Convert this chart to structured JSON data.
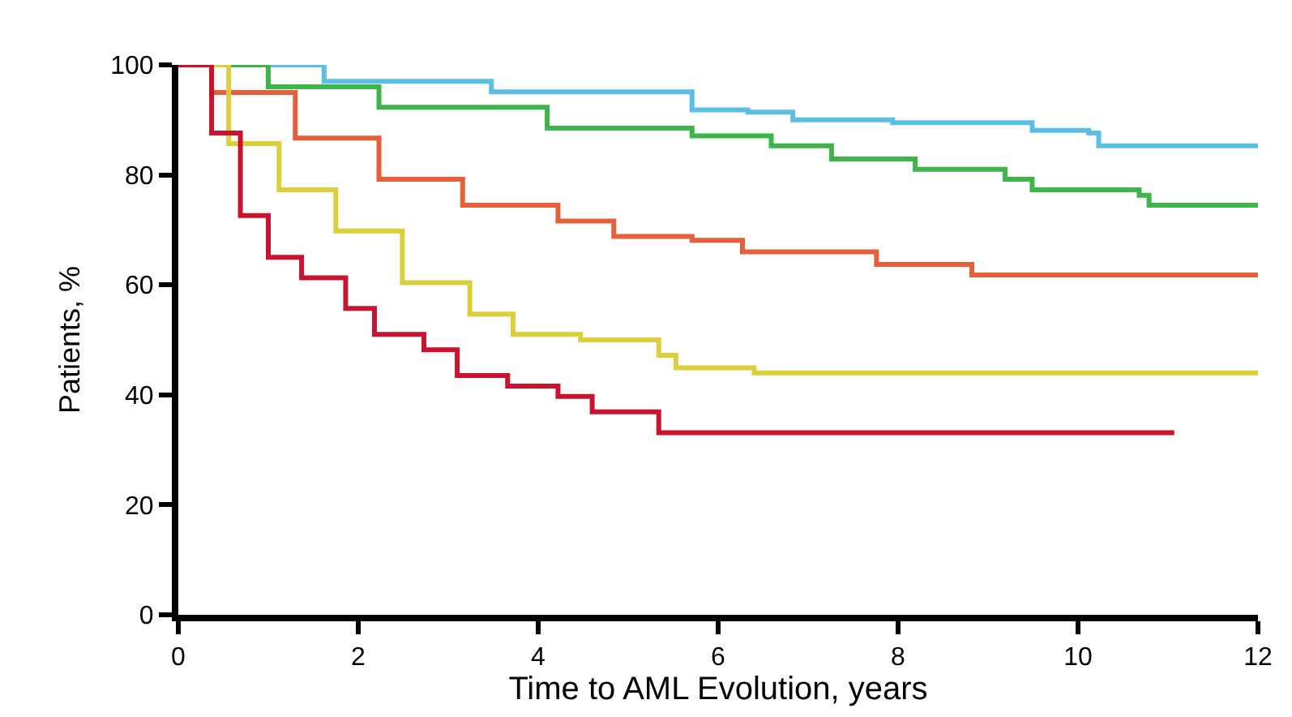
{
  "chart_data": {
    "type": "step",
    "xlabel": "Time to AML Evolution, years",
    "ylabel": "Patients, %",
    "xlim": [
      0,
      12
    ],
    "ylim": [
      0,
      100
    ],
    "xticks": [
      0,
      2,
      4,
      6,
      8,
      10,
      12
    ],
    "yticks": [
      0,
      20,
      40,
      60,
      80,
      100
    ],
    "marker": "none",
    "line_style": "solid",
    "series": [
      {
        "color": "#5bbfe4",
        "x": [
          0,
          1.62,
          3.48,
          5.71,
          6.33,
          6.83,
          7.94,
          9.49,
          10.12,
          10.23,
          12
        ],
        "values": [
          100,
          97,
          95.1,
          91.8,
          91.4,
          90,
          89.5,
          88.1,
          87.6,
          85.3,
          85.3
        ]
      },
      {
        "color": "#3db54a",
        "x": [
          0,
          1.0,
          2.23,
          4.1,
          5.71,
          6.59,
          7.26,
          8.19,
          9.19,
          9.49,
          10.68,
          10.79,
          12
        ],
        "values": [
          100,
          96,
          92.3,
          88.5,
          87.1,
          85.3,
          82.9,
          81,
          79.2,
          77.3,
          76.3,
          74.5,
          74.5
        ]
      },
      {
        "color": "#e5603a",
        "x": [
          0,
          0.37,
          1.3,
          2.23,
          3.16,
          4.22,
          4.84,
          5.71,
          6.27,
          7.76,
          8.82,
          12
        ],
        "values": [
          100,
          95,
          86.7,
          79.2,
          74.5,
          71.6,
          68.8,
          68.1,
          66,
          63.7,
          61.8,
          61.8
        ]
      },
      {
        "color": "#dccf3c",
        "x": [
          0,
          0.56,
          1.12,
          1.75,
          2.49,
          3.24,
          3.72,
          4.47,
          5.34,
          5.53,
          6.4,
          12
        ],
        "values": [
          100,
          85.7,
          77.3,
          69.8,
          60.4,
          54.7,
          51,
          50,
          47.2,
          44.9,
          44,
          44
        ]
      },
      {
        "color": "#c8142f",
        "x": [
          0,
          0.37,
          0.69,
          1.0,
          1.37,
          1.86,
          2.18,
          2.73,
          3.1,
          3.66,
          4.22,
          4.6,
          5.34,
          11.07
        ],
        "values": [
          100,
          87.6,
          72.6,
          65,
          61.3,
          55.7,
          51,
          48.2,
          43.5,
          41.6,
          39.7,
          36.9,
          33.1,
          33.1
        ]
      }
    ]
  }
}
